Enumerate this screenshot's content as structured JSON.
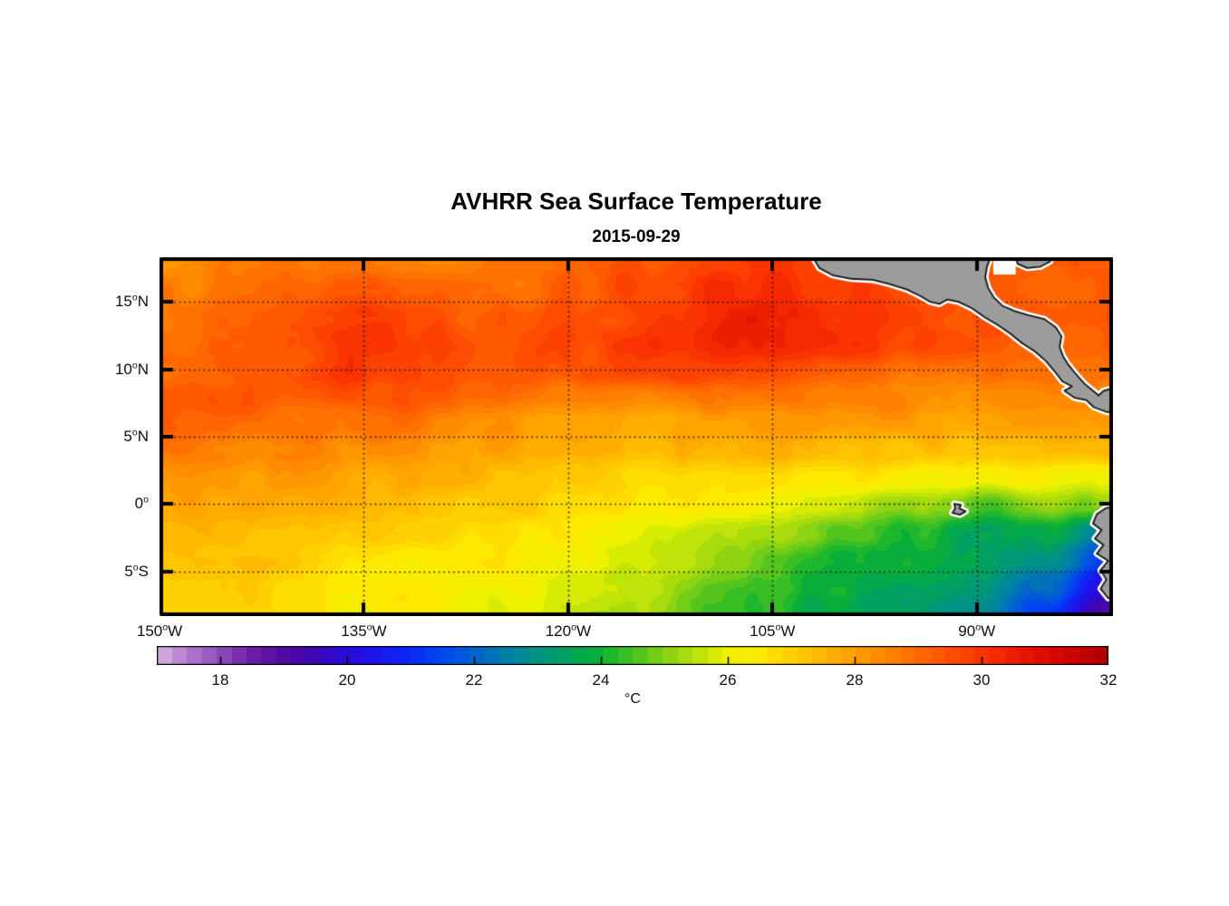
{
  "chart_data": {
    "type": "heatmap",
    "title": "AVHRR Sea Surface Temperature",
    "date": "2015-09-29",
    "units": "°C",
    "lon_range": [
      -150,
      -80
    ],
    "lat_range": [
      -8.3,
      18.3
    ],
    "x_tick_lons": [
      -150,
      -135,
      -120,
      -105,
      -90
    ],
    "x_tick_labels": [
      [
        "150",
        "W"
      ],
      [
        "135",
        "W"
      ],
      [
        "120",
        "W"
      ],
      [
        "105",
        "W"
      ],
      [
        "90",
        "W"
      ]
    ],
    "y_tick_lats": [
      15,
      10,
      5,
      0,
      -5
    ],
    "y_tick_labels": [
      [
        "15",
        "N"
      ],
      [
        "10",
        "N"
      ],
      [
        "5",
        "N"
      ],
      [
        "0",
        ""
      ],
      [
        "5",
        "S"
      ]
    ],
    "grid_lons": [
      -135,
      -120,
      -105,
      -90
    ],
    "grid_lats": [
      15,
      10,
      5,
      0,
      -5
    ],
    "sst_grid": {
      "lons": [
        -150,
        -145,
        -140,
        -135,
        -130,
        -125,
        -120,
        -115,
        -110,
        -105,
        -100,
        -95,
        -90,
        -85,
        -80
      ],
      "lats": [
        18,
        16,
        14,
        12,
        10,
        8,
        6,
        4,
        2,
        0,
        -2,
        -4,
        -6,
        -8
      ],
      "values_c": [
        [
          28.3,
          28.5,
          28.6,
          28.8,
          28.6,
          28.8,
          29.0,
          29.3,
          29.6,
          29.9,
          29.7,
          29.5,
          29.3,
          29.3,
          29.2
        ],
        [
          28.6,
          28.7,
          29.0,
          29.2,
          28.9,
          28.8,
          29.2,
          29.6,
          30.0,
          30.2,
          29.8,
          29.6,
          29.4,
          29.3,
          29.2
        ],
        [
          28.8,
          29.0,
          29.3,
          29.8,
          29.4,
          29.2,
          29.5,
          29.8,
          30.2,
          30.4,
          30.0,
          29.8,
          29.5,
          29.4,
          29.3
        ],
        [
          28.9,
          29.1,
          29.6,
          30.1,
          29.7,
          29.3,
          29.6,
          30.0,
          30.3,
          30.2,
          30.0,
          29.6,
          29.3,
          29.2,
          29.0
        ],
        [
          29.0,
          29.3,
          29.5,
          30.0,
          29.5,
          29.2,
          29.4,
          29.6,
          29.8,
          29.6,
          29.3,
          29.0,
          28.8,
          28.9,
          28.8
        ],
        [
          29.4,
          29.5,
          29.3,
          29.5,
          29.2,
          29.0,
          28.5,
          28.3,
          28.8,
          28.9,
          28.7,
          28.5,
          28.3,
          28.4,
          28.6
        ],
        [
          29.2,
          29.0,
          28.9,
          28.9,
          28.6,
          28.3,
          27.8,
          27.6,
          28.0,
          28.2,
          28.2,
          28.0,
          27.8,
          27.9,
          28.0
        ],
        [
          28.6,
          28.5,
          28.4,
          28.2,
          28.0,
          27.8,
          27.5,
          27.3,
          27.5,
          27.6,
          27.5,
          27.3,
          27.2,
          27.3,
          27.4
        ],
        [
          28.2,
          28.0,
          27.9,
          27.7,
          27.6,
          27.4,
          27.2,
          26.9,
          26.8,
          26.6,
          26.5,
          26.3,
          26.2,
          26.4,
          26.0
        ],
        [
          27.9,
          27.7,
          27.6,
          27.5,
          27.3,
          27.1,
          26.9,
          26.6,
          26.4,
          26.2,
          25.8,
          25.2,
          24.6,
          25.0,
          25.3
        ],
        [
          27.6,
          27.5,
          27.3,
          27.2,
          27.0,
          26.8,
          26.4,
          26.0,
          25.6,
          25.2,
          24.8,
          24.2,
          23.8,
          23.6,
          22.5
        ],
        [
          27.4,
          27.2,
          27.0,
          26.8,
          26.6,
          26.4,
          26.2,
          25.8,
          25.2,
          24.6,
          24.2,
          23.8,
          23.5,
          23.0,
          21.0
        ],
        [
          27.2,
          27.0,
          26.8,
          26.6,
          26.4,
          26.2,
          25.9,
          25.5,
          24.9,
          24.3,
          23.9,
          23.6,
          23.2,
          22.0,
          19.8
        ],
        [
          27.1,
          26.9,
          26.7,
          26.5,
          26.3,
          26.1,
          25.7,
          25.3,
          24.6,
          24.1,
          23.7,
          23.4,
          22.8,
          21.2,
          18.8
        ]
      ]
    },
    "colorbar": {
      "min": 17,
      "max": 32,
      "levels": 64,
      "tick_values": [
        18,
        20,
        22,
        24,
        26,
        28,
        30,
        32
      ],
      "tick_labels": [
        "18",
        "20",
        "22",
        "24",
        "26",
        "28",
        "30",
        "32"
      ],
      "colormap_stops": [
        [
          17.0,
          "#d9b3e0"
        ],
        [
          17.5,
          "#b478cd"
        ],
        [
          18.0,
          "#8f4bb8"
        ],
        [
          18.5,
          "#6b1ea6"
        ],
        [
          19.0,
          "#500c9e"
        ],
        [
          19.5,
          "#3c07b4"
        ],
        [
          20.0,
          "#2a0bd9"
        ],
        [
          20.5,
          "#1c17ef"
        ],
        [
          21.0,
          "#0b2af5"
        ],
        [
          21.5,
          "#0048f0"
        ],
        [
          22.0,
          "#0063cf"
        ],
        [
          22.5,
          "#007fa8"
        ],
        [
          23.0,
          "#009384"
        ],
        [
          23.5,
          "#00a35c"
        ],
        [
          24.0,
          "#0cb133"
        ],
        [
          24.5,
          "#47c222"
        ],
        [
          25.0,
          "#85d214"
        ],
        [
          25.5,
          "#bce309"
        ],
        [
          26.0,
          "#eef200"
        ],
        [
          26.5,
          "#ffe900"
        ],
        [
          27.0,
          "#ffd000"
        ],
        [
          27.5,
          "#ffb700"
        ],
        [
          28.0,
          "#ff9e00"
        ],
        [
          28.5,
          "#ff8500"
        ],
        [
          29.0,
          "#ff6a00"
        ],
        [
          29.5,
          "#ff5000"
        ],
        [
          30.0,
          "#fa3500"
        ],
        [
          30.5,
          "#ee1d00"
        ],
        [
          31.0,
          "#dd0c00"
        ],
        [
          31.5,
          "#c80300"
        ],
        [
          32.0,
          "#b00000"
        ]
      ]
    }
  },
  "map_overlay": {
    "land_color": "#9c9c9c",
    "coast_color": "#141414",
    "coast_halo": "#ffffff",
    "land_polygons": [
      {
        "name": "mexico-central-america",
        "pts": [
          [
            0.683,
            -0.01
          ],
          [
            0.692,
            0.03
          ],
          [
            0.706,
            0.05
          ],
          [
            0.726,
            0.06
          ],
          [
            0.748,
            0.063
          ],
          [
            0.766,
            0.075
          ],
          [
            0.784,
            0.09
          ],
          [
            0.798,
            0.108
          ],
          [
            0.808,
            0.124
          ],
          [
            0.818,
            0.13
          ],
          [
            0.826,
            0.118
          ],
          [
            0.838,
            0.124
          ],
          [
            0.852,
            0.142
          ],
          [
            0.866,
            0.168
          ],
          [
            0.88,
            0.19
          ],
          [
            0.892,
            0.212
          ],
          [
            0.905,
            0.24
          ],
          [
            0.918,
            0.262
          ],
          [
            0.93,
            0.29
          ],
          [
            0.94,
            0.322
          ],
          [
            0.947,
            0.346
          ],
          [
            0.957,
            0.36
          ],
          [
            0.949,
            0.372
          ],
          [
            0.96,
            0.392
          ],
          [
            0.972,
            0.398
          ],
          [
            0.98,
            0.418
          ],
          [
            0.992,
            0.43
          ],
          [
            1.01,
            0.438
          ],
          [
            1.01,
            0.358
          ],
          [
            0.99,
            0.372
          ],
          [
            0.985,
            0.385
          ],
          [
            0.97,
            0.352
          ],
          [
            0.96,
            0.322
          ],
          [
            0.952,
            0.295
          ],
          [
            0.948,
            0.278
          ],
          [
            0.944,
            0.25
          ],
          [
            0.946,
            0.22
          ],
          [
            0.94,
            0.195
          ],
          [
            0.928,
            0.172
          ],
          [
            0.912,
            0.162
          ],
          [
            0.897,
            0.15
          ],
          [
            0.884,
            0.135
          ],
          [
            0.875,
            0.112
          ],
          [
            0.869,
            0.085
          ],
          [
            0.866,
            0.055
          ],
          [
            0.868,
            0.025
          ],
          [
            0.873,
            -0.01
          ]
        ]
      },
      {
        "name": "yucatan",
        "pts": [
          [
            0.897,
            -0.01
          ],
          [
            0.937,
            -0.01
          ],
          [
            0.934,
            0.012
          ],
          [
            0.924,
            0.026
          ],
          [
            0.91,
            0.03
          ],
          [
            0.9,
            0.018
          ]
        ]
      },
      {
        "name": "south-america",
        "pts": [
          [
            1.01,
            0.69
          ],
          [
            0.992,
            0.7
          ],
          [
            0.983,
            0.716
          ],
          [
            0.979,
            0.742
          ],
          [
            0.988,
            0.76
          ],
          [
            0.981,
            0.784
          ],
          [
            0.99,
            0.802
          ],
          [
            0.983,
            0.826
          ],
          [
            0.995,
            0.846
          ],
          [
            0.987,
            0.872
          ],
          [
            0.993,
            0.898
          ],
          [
            0.987,
            0.924
          ],
          [
            0.995,
            0.95
          ],
          [
            1.01,
            0.962
          ]
        ]
      },
      {
        "name": "galapagos",
        "pts": [
          [
            0.8335,
            0.687
          ],
          [
            0.8405,
            0.69
          ],
          [
            0.839,
            0.7
          ],
          [
            0.8455,
            0.708
          ],
          [
            0.8395,
            0.7175
          ],
          [
            0.8315,
            0.7125
          ],
          [
            0.8345,
            0.7
          ]
        ]
      }
    ],
    "nodata_patches": [
      {
        "fx": 0.8745,
        "fy": 0.0,
        "fw": 0.0235,
        "fh": 0.048
      }
    ]
  }
}
